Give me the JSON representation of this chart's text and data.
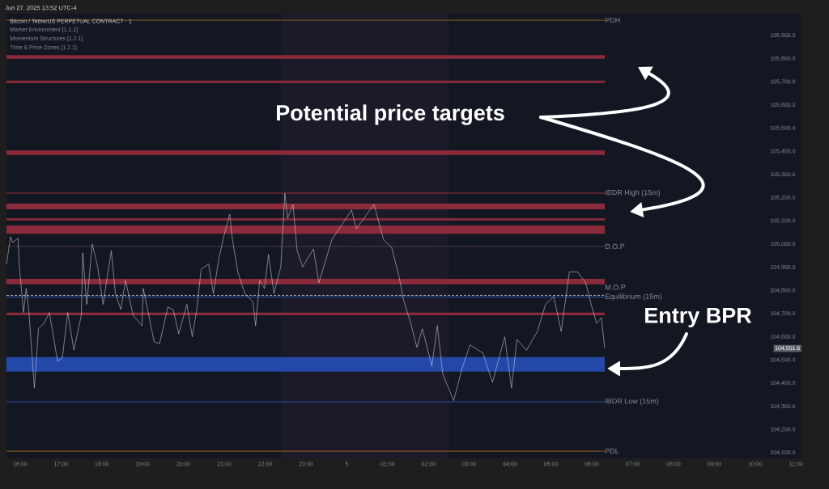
{
  "chart_data": {
    "type": "line",
    "title": "Bitcoin / TetherUS PERPETUAL CONTRACT · 1",
    "annotations": [
      "Jun 27, 2025 13:52 UTC-4",
      "Market Environment [1.1.1]",
      "Momentum Structures [1.2.1]",
      "Time & Price Zones [1.2.1]",
      "Potential price targets",
      "Entry BPR",
      "104,551.6"
    ],
    "x": [
      "2025-06-04T15:40",
      "2025-06-04T15:46",
      "2025-06-04T15:49",
      "2025-06-04T15:57",
      "2025-06-04T15:59",
      "2025-06-04T16:05",
      "2025-06-04T16:09",
      "2025-06-04T16:13",
      "2025-06-04T16:21",
      "2025-06-04T16:27",
      "2025-06-04T16:35",
      "2025-06-04T16:43",
      "2025-06-04T16:55",
      "2025-06-04T17:02",
      "2025-06-04T17:10",
      "2025-06-04T17:19",
      "2025-06-04T17:30",
      "2025-06-04T17:32",
      "2025-06-04T17:38",
      "2025-06-04T17:46",
      "2025-06-04T17:54",
      "2025-06-04T18:02",
      "2025-06-04T18:14",
      "2025-06-04T18:20",
      "2025-06-04T18:28",
      "2025-06-04T18:35",
      "2025-06-04T18:46",
      "2025-06-04T18:59",
      "2025-06-04T19:01",
      "2025-06-04T19:17",
      "2025-06-04T19:25",
      "2025-06-04T19:37",
      "2025-06-04T19:45",
      "2025-06-04T19:53",
      "2025-06-04T20:05",
      "2025-06-04T20:13",
      "2025-06-04T20:20",
      "2025-06-04T20:26",
      "2025-06-04T20:37",
      "2025-06-04T20:44",
      "2025-06-04T20:52",
      "2025-06-04T21:00",
      "2025-06-04T21:08",
      "2025-06-04T21:12",
      "2025-06-04T21:20",
      "2025-06-04T21:30",
      "2025-06-04T21:42",
      "2025-06-04T21:46",
      "2025-06-04T21:52",
      "2025-06-04T21:59",
      "2025-06-04T22:05",
      "2025-06-04T22:13",
      "2025-06-04T22:23",
      "2025-06-04T22:29",
      "2025-06-04T22:33",
      "2025-06-04T22:41",
      "2025-06-04T22:47",
      "2025-06-04T22:55",
      "2025-06-04T23:11",
      "2025-06-04T23:19",
      "2025-06-04T23:38",
      "2025-06-05T00:07",
      "2025-06-05T00:14",
      "2025-06-05T00:40",
      "2025-06-05T00:54",
      "2025-06-05T01:06",
      "2025-06-05T01:17",
      "2025-06-05T01:23",
      "2025-06-05T01:34",
      "2025-06-05T01:43",
      "2025-06-05T01:51",
      "2025-06-05T02:05",
      "2025-06-05T02:13",
      "2025-06-05T02:21",
      "2025-06-05T02:37",
      "2025-06-05T02:49",
      "2025-06-05T03:01",
      "2025-06-05T03:20",
      "2025-06-05T03:34",
      "2025-06-05T03:52",
      "2025-06-05T04:02",
      "2025-06-05T04:10",
      "2025-06-05T04:24",
      "2025-06-05T04:40",
      "2025-06-05T04:52",
      "2025-06-05T05:04",
      "2025-06-05T05:15",
      "2025-06-05T05:27",
      "2025-06-05T05:39",
      "2025-06-05T05:51",
      "2025-06-05T05:59",
      "2025-06-05T06:07",
      "2025-06-05T06:14",
      "2025-06-05T06:19"
    ],
    "series": [
      {
        "color": "#d1d4dc",
        "values": [
          104914,
          105032,
          105007,
          105025,
          104902,
          104705,
          104809,
          104705,
          104379,
          104635,
          104658,
          104705,
          104495,
          104508,
          104705,
          104543,
          104693,
          104962,
          104740,
          105001,
          104902,
          104740,
          104972,
          104787,
          104718,
          104844,
          104693,
          104648,
          104809,
          104578,
          104571,
          104728,
          104718,
          104613,
          104740,
          104600,
          104728,
          104892,
          104914,
          104787,
          104937,
          105042,
          105129,
          105019,
          104879,
          104787,
          104752,
          104648,
          104844,
          104809,
          104955,
          104787,
          104902,
          105220,
          105112,
          105171,
          104972,
          104902,
          104979,
          104833,
          105019,
          105147,
          105066,
          105171,
          105019,
          104984,
          104857,
          104763,
          104658,
          104554,
          104635,
          104473,
          104648,
          104439,
          104325,
          104460,
          104565,
          104530,
          104403,
          104600,
          104379,
          104589,
          104542,
          104623,
          104740,
          104774,
          104623,
          104880,
          104880,
          104833,
          104740,
          104658,
          104682,
          104550
        ]
      }
    ],
    "xlim": [
      "2025-06-04T15:40",
      "2025-06-05T11:08"
    ],
    "ylim": [
      104076,
      105994
    ],
    "xticks": [
      {
        "value": "2025-06-04T16:00",
        "label": "16:00"
      },
      {
        "value": "2025-06-04T17:00",
        "label": "17:00"
      },
      {
        "value": "2025-06-04T18:00",
        "label": "18:00"
      },
      {
        "value": "2025-06-04T19:00",
        "label": "19:00"
      },
      {
        "value": "2025-06-04T20:00",
        "label": "20:00"
      },
      {
        "value": "2025-06-04T21:00",
        "label": "21:00"
      },
      {
        "value": "2025-06-04T22:00",
        "label": "22:00"
      },
      {
        "value": "2025-06-04T23:00",
        "label": "23:00"
      },
      {
        "value": "2025-06-05",
        "label": "5"
      },
      {
        "value": "2025-06-05T01:00",
        "label": "01:00"
      },
      {
        "value": "2025-06-05T02:00",
        "label": "02:00"
      },
      {
        "value": "2025-06-05T03:00",
        "label": "03:00"
      },
      {
        "value": "2025-06-05T04:00",
        "label": "04:00"
      },
      {
        "value": "2025-06-05T05:00",
        "label": "05:00"
      },
      {
        "value": "2025-06-05T06:00",
        "label": "06:00"
      },
      {
        "value": "2025-06-05T07:00",
        "label": "07:00"
      },
      {
        "value": "2025-06-05T08:00",
        "label": "08:00"
      },
      {
        "value": "2025-06-05T09:00",
        "label": "09:00"
      },
      {
        "value": "2025-06-05T10:00",
        "label": "10:00"
      },
      {
        "value": "2025-06-05T11:00",
        "label": "11:00"
      }
    ],
    "yticks": [
      {
        "value": 104100,
        "label": "104,100.0"
      },
      {
        "value": 104200,
        "label": "104,200.0"
      },
      {
        "value": 104300,
        "label": "104,300.0"
      },
      {
        "value": 104400,
        "label": "104,400.0"
      },
      {
        "value": 104500,
        "label": "104,500.0"
      },
      {
        "value": 104600,
        "label": "104,600.0"
      },
      {
        "value": 104700,
        "label": "104,700.0"
      },
      {
        "value": 104800,
        "label": "104,800.0"
      },
      {
        "value": 104900,
        "label": "104,900.0"
      },
      {
        "value": 105000,
        "label": "105,000.0"
      },
      {
        "value": 105100,
        "label": "105,100.0"
      },
      {
        "value": 105200,
        "label": "105,200.0"
      },
      {
        "value": 105300,
        "label": "105,300.0"
      },
      {
        "value": 105400,
        "label": "105,400.0"
      },
      {
        "value": 105500,
        "label": "105,500.0"
      },
      {
        "value": 105600,
        "label": "105,600.0"
      },
      {
        "value": 105700,
        "label": "105,700.0"
      },
      {
        "value": 105800,
        "label": "105,800.0"
      },
      {
        "value": 105900,
        "label": "105,900.0"
      }
    ],
    "bands": [
      {
        "axis": "x",
        "from": "2025-06-04T22:23",
        "to": "2025-06-05T02:29",
        "color": "#1c1a28"
      },
      {
        "axis": "y",
        "from": 105800,
        "to": 105815,
        "color": "#8b2a3a"
      },
      {
        "axis": "y",
        "from": 105695,
        "to": 105705,
        "color": "#8b2a3a"
      },
      {
        "axis": "y",
        "from": 105385,
        "to": 105405,
        "color": "#8b2a3a"
      },
      {
        "axis": "y",
        "from": 105150,
        "to": 105175,
        "color": "#8b2a3a"
      },
      {
        "axis": "y",
        "from": 105102,
        "to": 105112,
        "color": "#8b2a3a"
      },
      {
        "axis": "y",
        "from": 105045,
        "to": 105080,
        "color": "#8b2a3a"
      },
      {
        "axis": "y",
        "from": 104827,
        "to": 104850,
        "color": "#8b2a3a"
      },
      {
        "axis": "y",
        "from": 104693,
        "to": 104705,
        "color": "#8b2a3a"
      },
      {
        "axis": "y",
        "from": 104450,
        "to": 104513,
        "color": "#2448a8"
      }
    ],
    "ref_lines": [
      {
        "axis": "y",
        "value": 105966,
        "label": "PDH",
        "color": "#b8741a",
        "line_style": "solid"
      },
      {
        "axis": "y",
        "value": 105220,
        "label": "IBDR High (15m)",
        "color": "#c2343f",
        "line_style": "solid"
      },
      {
        "axis": "y",
        "value": 104990,
        "label": "D.O.P",
        "color": "#9a6a7a",
        "line_style": "dotted"
      },
      {
        "axis": "y",
        "value": 104779,
        "label": "M.O.P",
        "color": "#d1d4dc",
        "line_style": "dashed"
      },
      {
        "axis": "y",
        "value": 104772,
        "label": "Equilibrium (15m)",
        "color": "#2f5fd0",
        "line_style": "solid"
      },
      {
        "axis": "y",
        "value": 104320,
        "label": "IBDR Low (15m)",
        "color": "#3a5fcd",
        "line_style": "solid"
      },
      {
        "axis": "y",
        "value": 104107,
        "label": "PDL",
        "color": "#b8741a",
        "line_style": "solid"
      }
    ]
  }
}
